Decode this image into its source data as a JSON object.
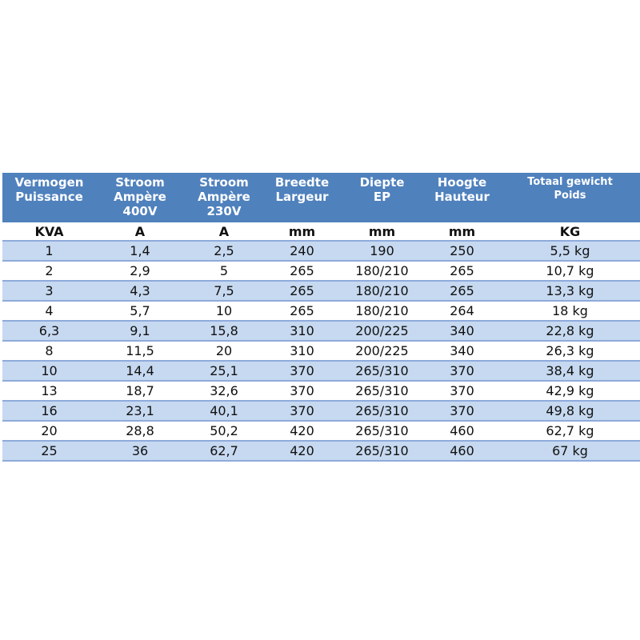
{
  "colors": {
    "header": "#4f81bd",
    "band": "#c6d9f0"
  },
  "headers": [
    [
      "Vermogen",
      "Puissance"
    ],
    [
      "Stroom",
      "Ampère",
      "400V"
    ],
    [
      "Stroom",
      "Ampère",
      "230V"
    ],
    [
      "Breedte",
      "Largeur"
    ],
    [
      "Diepte",
      "EP"
    ],
    [
      "Hoogte",
      "Hauteur"
    ],
    [
      "Totaal gewicht",
      "Poids"
    ]
  ],
  "units": [
    "KVA",
    "A",
    "A",
    "mm",
    "mm",
    "mm",
    "KG"
  ],
  "rows": [
    [
      "1",
      "1,4",
      "2,5",
      "240",
      "190",
      "250",
      "5,5 kg"
    ],
    [
      "2",
      "2,9",
      "5",
      "265",
      "180/210",
      "265",
      "10,7 kg"
    ],
    [
      "3",
      "4,3",
      "7,5",
      "265",
      "180/210",
      "265",
      "13,3 kg"
    ],
    [
      "4",
      "5,7",
      "10",
      "265",
      "180/210",
      "264",
      "18 kg"
    ],
    [
      "6,3",
      "9,1",
      "15,8",
      "310",
      "200/225",
      "340",
      "22,8 kg"
    ],
    [
      "8",
      "11,5",
      "20",
      "310",
      "200/225",
      "340",
      "26,3 kg"
    ],
    [
      "10",
      "14,4",
      "25,1",
      "370",
      "265/310",
      "370",
      "38,4 kg"
    ],
    [
      "13",
      "18,7",
      "32,6",
      "370",
      "265/310",
      "370",
      "42,9 kg"
    ],
    [
      "16",
      "23,1",
      "40,1",
      "370",
      "265/310",
      "370",
      "49,8 kg"
    ],
    [
      "20",
      "28,8",
      "50,2",
      "420",
      "265/310",
      "460",
      "62,7 kg"
    ],
    [
      "25",
      "36",
      "62,7",
      "420",
      "265/310",
      "460",
      "67 kg"
    ]
  ]
}
